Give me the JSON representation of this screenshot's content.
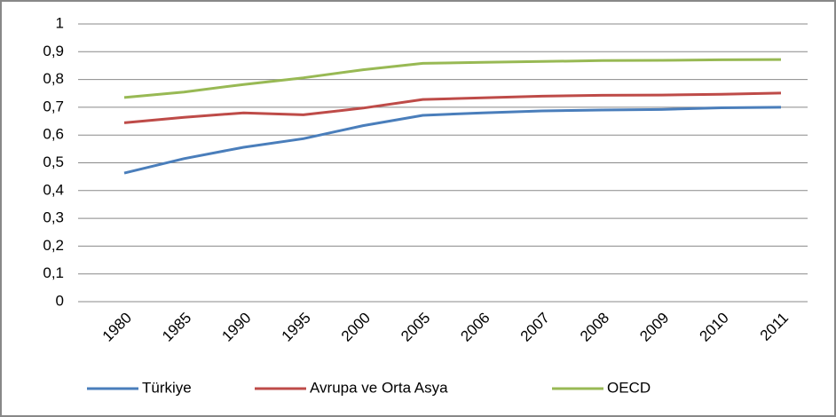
{
  "chart_data": {
    "type": "line",
    "categories": [
      "1980",
      "1985",
      "1990",
      "1995",
      "2000",
      "2005",
      "2006",
      "2007",
      "2008",
      "2009",
      "2010",
      "2011"
    ],
    "series": [
      {
        "name": "Türkiye",
        "color": "#4a7ebb",
        "values": [
          0.463,
          0.515,
          0.556,
          0.587,
          0.634,
          0.671,
          0.68,
          0.687,
          0.69,
          0.692,
          0.698,
          0.7
        ]
      },
      {
        "name": "Avrupa ve Orta Asya",
        "color": "#be4b48",
        "values": [
          0.644,
          0.664,
          0.68,
          0.673,
          0.697,
          0.728,
          0.734,
          0.74,
          0.743,
          0.744,
          0.747,
          0.751
        ]
      },
      {
        "name": "OECD",
        "color": "#98b954",
        "values": [
          0.735,
          0.755,
          0.782,
          0.806,
          0.835,
          0.858,
          0.862,
          0.865,
          0.868,
          0.869,
          0.871,
          0.872
        ]
      }
    ],
    "ylim": [
      0,
      1
    ],
    "yticks": [
      0,
      {
        "value": 0.1,
        "label": "0,1"
      },
      {
        "value": 0.2,
        "label": "0,2"
      },
      {
        "value": 0.3,
        "label": "0,3"
      },
      {
        "value": 0.4,
        "label": "0,4"
      },
      {
        "value": 0.5,
        "label": "0,5"
      },
      {
        "value": 0.6,
        "label": "0,6"
      },
      {
        "value": 0.7,
        "label": "0,7"
      },
      {
        "value": 0.8,
        "label": "0,8"
      },
      {
        "value": 0.9,
        "label": "0,9"
      },
      1
    ],
    "grid": true,
    "legend": "bottom"
  }
}
